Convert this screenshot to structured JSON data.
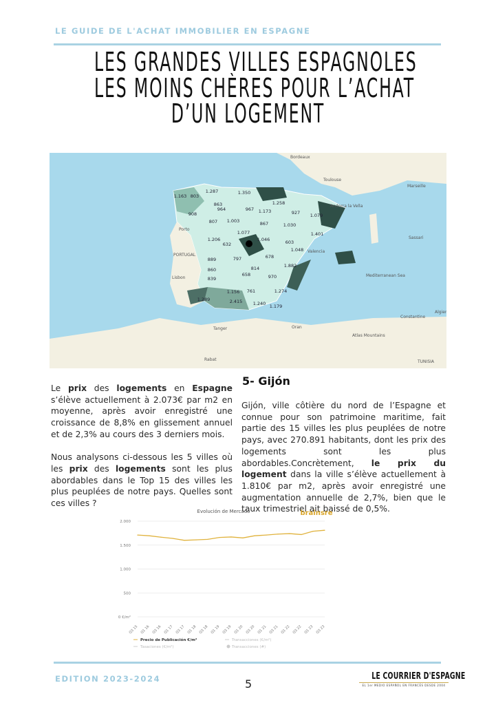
{
  "header": {
    "kicker": "LE GUIDE DE L'ACHAT IMMOBILIER EN ESPAGNE",
    "title_lines": [
      "LES GRANDES VILLES ESPAGNOLES",
      "LES MOINS CHÈRES POUR L’ACHAT",
      "D’UN LOGEMENT"
    ]
  },
  "map": {
    "price_labels": [
      "1.163",
      "803",
      "1.287",
      "1.350",
      "863",
      "908",
      "964",
      "967",
      "1.173",
      "1.258",
      "927",
      "1.079",
      "807",
      "1.003",
      "867",
      "1.030",
      "1.077",
      "1.206",
      "632",
      "1.046",
      "603",
      "1.401",
      "1.048",
      "889",
      "797",
      "678",
      "1.882",
      "860",
      "814",
      "658",
      "839",
      "970",
      "1.156",
      "761",
      "1.274",
      "1.289",
      "2.415",
      "1.240",
      "1.179"
    ],
    "place_labels": [
      "Bordeaux",
      "Toulouse",
      "Marseille",
      "Andorra la Vella",
      "Porto",
      "PORTUGAL",
      "Lisbon",
      "Valencia",
      "Sassari",
      "Mediterranean Sea",
      "Algiers",
      "Constantine",
      "Atlas Mountains",
      "TUNISIA",
      "Oran",
      "Rabat",
      "Tanger"
    ],
    "colors": {
      "sea": "#a8d9ec",
      "land": "#f3f0e2",
      "low": "#cfeee6",
      "mid": "#8fbfb0",
      "high": "#2f4f47"
    }
  },
  "left_column": {
    "p1": [
      {
        "t": "Le "
      },
      {
        "t": "prix",
        "b": true
      },
      {
        "t": " des "
      },
      {
        "t": "logements",
        "b": true
      },
      {
        "t": " en "
      },
      {
        "t": "Espagne",
        "b": true
      },
      {
        "t": " s’élève actuellement à 2.073€ par m2 en moyenne, après avoir enregistré une croissance de 8,8% en glissement annuel et de 2,3% au cours des 3 derniers mois."
      }
    ],
    "p2": [
      {
        "t": "Nous analysons ci-dessous les 5 villes où les "
      },
      {
        "t": "prix",
        "b": true
      },
      {
        "t": " des "
      },
      {
        "t": "logements",
        "b": true
      },
      {
        "t": " sont les plus abordables dans le Top 15 des villes les plus peuplées de notre pays. Quelles sont ces villes ?"
      }
    ]
  },
  "right_column": {
    "heading": "5- Gijón",
    "p1": [
      {
        "t": "Gijón, ville côtière du nord de l’Espagne et connue pour son patrimoine maritime, fait partie des 15 villes les plus peuplées de notre pays, avec 270.891 habitants, dont les prix des logements sont les plus abordables.Concrètement, "
      },
      {
        "t": "le prix du logement",
        "b": true
      },
      {
        "t": " dans la ville s’élève actuellement à 1.810€ par m2, après avoir enregistré une augmentation annuelle de 2,7%, bien que le taux trimestriel ait baissé de 0,5%."
      }
    ]
  },
  "chart_data": {
    "type": "line",
    "title": "Evolución de Mercado",
    "logo": "brainsre",
    "categories": [
      "Q3 15",
      "Q1 16",
      "Q3 16",
      "Q1 17",
      "Q3 17",
      "Q1 18",
      "Q3 18",
      "Q1 19",
      "Q3 19",
      "Q1 20",
      "Q3 20",
      "Q1 21",
      "Q3 21",
      "Q1 22",
      "Q3 22",
      "Q1 23",
      "Q3 23"
    ],
    "yticks": [
      "0 €/m²",
      "500",
      "1.000",
      "1.500",
      "2.000"
    ],
    "ylim": [
      0,
      2000
    ],
    "grid": true,
    "series": [
      {
        "name": "Precio de Publicación €/m²",
        "color": "#e0b23c",
        "values": [
          1710,
          1695,
          1665,
          1640,
          1600,
          1610,
          1620,
          1660,
          1670,
          1650,
          1695,
          1710,
          1730,
          1740,
          1720,
          1790,
          1810
        ]
      }
    ],
    "legend": [
      {
        "label": "Precio de Publicación €/m²",
        "active": true
      },
      {
        "label": "Transacciones (€/m²)",
        "active": false
      },
      {
        "label": "Tasaciones (€/m²)",
        "active": false
      },
      {
        "label": "Transacciones (#)",
        "active": false
      }
    ]
  },
  "footer": {
    "edition": "EDITION 2023-2024",
    "page": "5",
    "brand": "LE COURRIER D'ESPAGNE",
    "brand_tagline": "EL 1er MEDIO ESPAÑOL EN FRANCÉS DESDE 2004"
  }
}
